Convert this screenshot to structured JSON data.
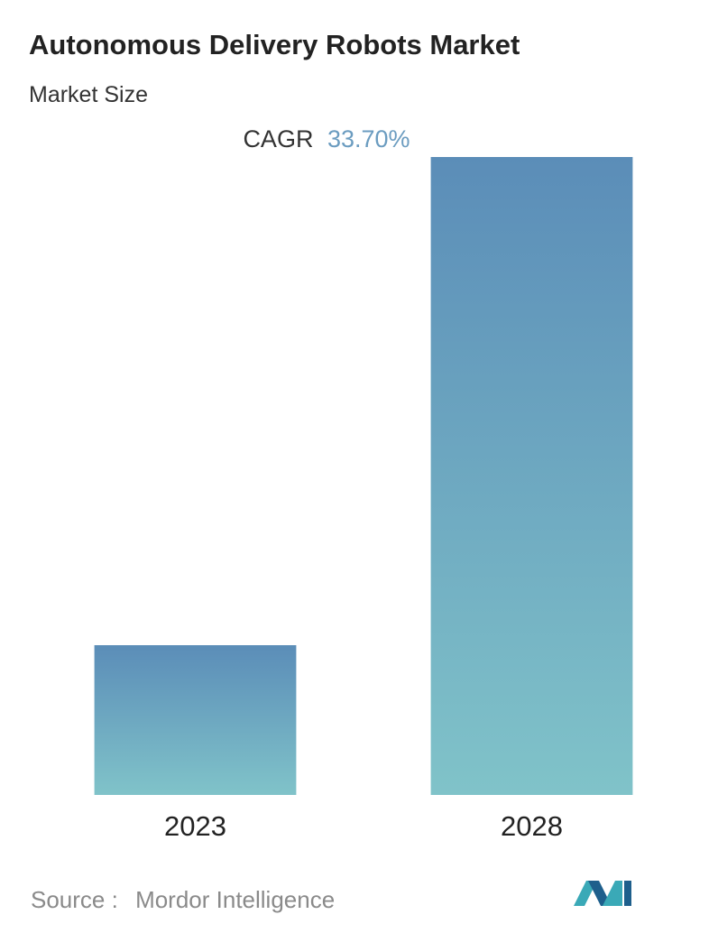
{
  "chart_data": {
    "type": "bar",
    "title": "Autonomous Delivery Robots Market",
    "subtitle": "Market Size",
    "cagr": {
      "label": "CAGR",
      "value": "33.70%"
    },
    "categories": [
      "2023",
      "2028"
    ],
    "values": [
      1,
      4.26
    ],
    "ylim": [
      0,
      4.26
    ],
    "colors": [
      "#5b8db8",
      "#80c3c9"
    ],
    "source": {
      "label": "Source :",
      "value": "Mordor Intelligence"
    }
  }
}
